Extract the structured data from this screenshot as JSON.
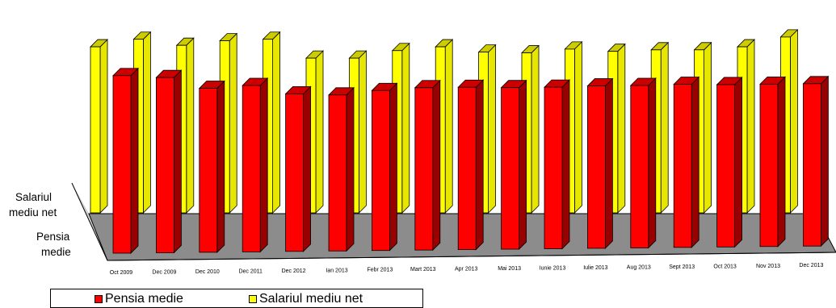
{
  "chart_data": {
    "type": "bar",
    "categories": [
      "Oct 2009",
      "Dec 2009",
      "Dec 2010",
      "Dec 2011",
      "Dec 2012",
      "Ian  2013",
      "Febr 2013",
      "Mart 2013",
      "Apr 2013",
      "Mai 2013",
      "Iunie 2013",
      "Iulie 2013",
      "Aug  2013",
      "Sept 2013",
      "Oct 2013",
      "Nov 2013",
      "Dec 2013"
    ],
    "depth_categories": [
      "Salariul mediu net",
      "Pensia medie"
    ],
    "series": [
      {
        "name": "Pensia medie",
        "color": "#ff0000",
        "values": [
          222,
          219,
          205,
          208,
          197,
          195,
          200,
          203,
          203,
          202,
          202,
          203,
          203,
          204,
          203,
          203,
          203
        ]
      },
      {
        "name": "Salariul mediu net",
        "color": "#ffff00",
        "values": [
          220,
          230,
          222,
          228,
          230,
          205,
          205,
          215,
          220,
          213,
          212,
          217,
          214,
          216,
          216,
          220,
          233
        ]
      }
    ],
    "grid": false,
    "legend_position": "bottom-left"
  },
  "legend": {
    "items": [
      {
        "label": "Pensia medie",
        "color": "#ff0000"
      },
      {
        "label": "Salariul mediu net",
        "color": "#ffff00"
      }
    ]
  }
}
